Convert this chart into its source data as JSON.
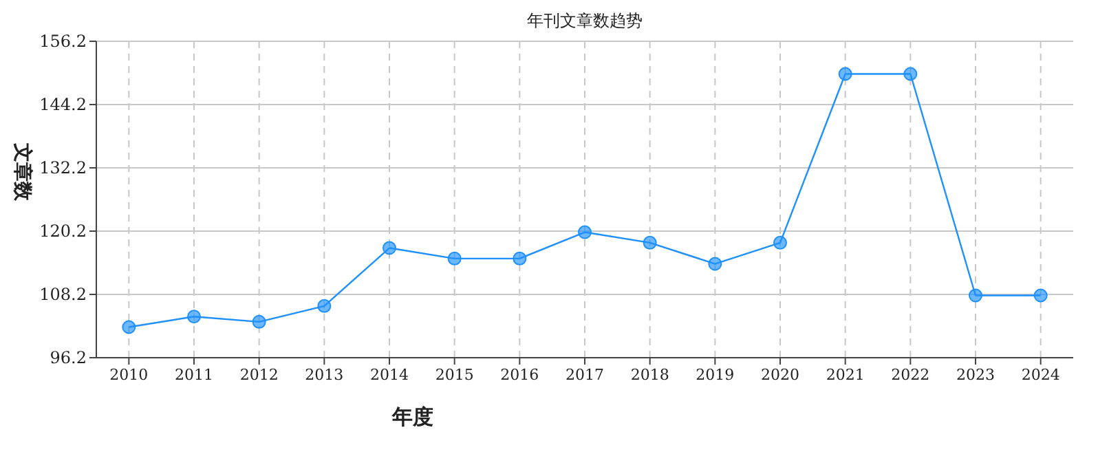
{
  "chart_data": {
    "type": "line",
    "title": "年刊文章数趋势",
    "xlabel": "年度",
    "ylabel": "文章数",
    "categories": [
      "2010",
      "2011",
      "2012",
      "2013",
      "2014",
      "2015",
      "2016",
      "2017",
      "2018",
      "2019",
      "2020",
      "2021",
      "2022",
      "2023",
      "2024"
    ],
    "series": [
      {
        "color": "#1e90ff",
        "values": [
          102,
          104,
          103,
          106,
          117,
          115,
          115,
          120,
          118,
          114,
          118,
          150,
          150,
          108,
          108
        ]
      }
    ],
    "ylim": [
      96.2,
      156.2
    ],
    "yticks": [
      96.2,
      108.2,
      120.2,
      132.2,
      144.2,
      156.2
    ],
    "grid": true,
    "marker": "circle"
  }
}
